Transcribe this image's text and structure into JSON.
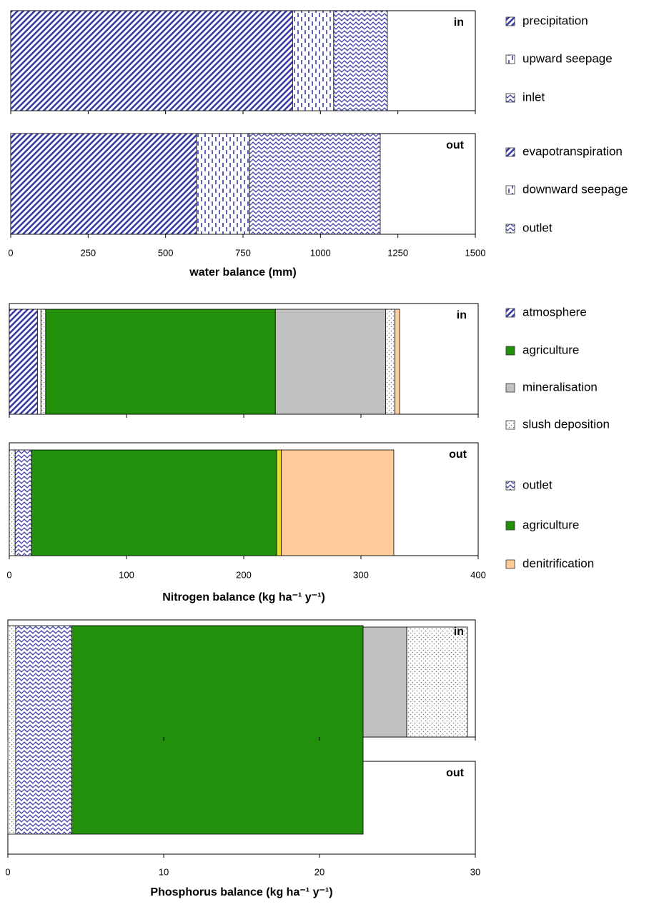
{
  "chart_data": [
    {
      "type": "bar",
      "orientation": "horizontal",
      "stacked": true,
      "x_label": "water balance (mm)",
      "categories": [
        "in",
        "out"
      ],
      "xlim": [
        0,
        1500
      ],
      "xticks": [
        0,
        250,
        500,
        750,
        1000,
        1250,
        1500
      ],
      "series": [
        {
          "name": "precipitation",
          "color": "#3c3ca8",
          "pattern": "diagonal",
          "values": [
            910,
            null
          ]
        },
        {
          "name": "upward seepage",
          "color": "#3c3ca8",
          "pattern": "dashes",
          "values": [
            133,
            null
          ]
        },
        {
          "name": "inlet",
          "color": "#3c3ca8",
          "pattern": "wave",
          "values": [
            173,
            null
          ]
        },
        {
          "name": "evapotranspiration",
          "color": "#3c3ca8",
          "pattern": "diagonal",
          "values": [
            null,
            600
          ]
        },
        {
          "name": "downward seepage",
          "color": "#3c3ca8",
          "pattern": "dashes",
          "values": [
            null,
            171
          ]
        },
        {
          "name": "outlet",
          "color": "#3c3ca8",
          "pattern": "wave",
          "values": [
            null,
            422
          ]
        }
      ]
    },
    {
      "type": "bar",
      "orientation": "horizontal",
      "stacked": true,
      "x_label": "Nitrogen balance  (kg ha⁻¹ y⁻¹)",
      "categories": [
        "in",
        "out"
      ],
      "xlim": [
        0,
        400
      ],
      "xticks": [
        0,
        100,
        200,
        300,
        400
      ],
      "series": [
        {
          "name": "atmosphere",
          "color": "#3c3ca8",
          "pattern": "diagonal",
          "values": [
            24,
            null
          ]
        },
        {
          "color": "#ffffff",
          "pattern": "solid",
          "values": [
            3,
            null
          ]
        },
        {
          "color": "#777777",
          "pattern": "dots",
          "values": [
            4,
            null
          ]
        },
        {
          "name": "agriculture",
          "color": "#23900b",
          "pattern": "solid",
          "values": [
            196,
            null
          ]
        },
        {
          "name": "mineralisation",
          "color": "#c0c0c0",
          "pattern": "solid",
          "values": [
            94,
            null
          ]
        },
        {
          "name": "slush deposition",
          "color": "#777777",
          "pattern": "dots",
          "values": [
            8,
            null
          ]
        },
        {
          "color": "#ffcc99",
          "pattern": "solid",
          "values": [
            4,
            null
          ]
        },
        {
          "color": "#777777",
          "pattern": "dots",
          "values": [
            null,
            5
          ]
        },
        {
          "name": "outlet",
          "color": "#3c3ca8",
          "pattern": "wave",
          "values": [
            null,
            14
          ]
        },
        {
          "name": "agriculture",
          "color": "#23900b",
          "pattern": "solid",
          "values": [
            null,
            209
          ]
        },
        {
          "color": "#e6dc2c",
          "pattern": "solid",
          "values": [
            null,
            4
          ]
        },
        {
          "name": "denitrification",
          "color": "#ffcc99",
          "pattern": "solid",
          "values": [
            null,
            96
          ]
        }
      ]
    },
    {
      "type": "bar",
      "orientation": "horizontal",
      "stacked": true,
      "x_label": "Phosphorus balance  (kg ha⁻¹ y⁻¹)",
      "categories": [
        "in",
        "out"
      ],
      "xlim": [
        0,
        30
      ],
      "xticks": [
        0,
        10,
        20,
        30
      ],
      "series": [
        {
          "color": "#3c3ca8",
          "pattern": "diagonal",
          "values": [
            0.6,
            null
          ]
        },
        {
          "color": "#ffffff",
          "pattern": "solid",
          "values": [
            0.5,
            null
          ]
        },
        {
          "color": "#777777",
          "pattern": "dots",
          "values": [
            0.5,
            null
          ]
        },
        {
          "color": "#23900b",
          "pattern": "solid",
          "values": [
            18.7,
            null
          ]
        },
        {
          "color": "#c0c0c0",
          "pattern": "solid",
          "values": [
            5.3,
            null
          ]
        },
        {
          "color": "#777777",
          "pattern": "dots",
          "values": [
            3.9,
            null
          ]
        },
        {
          "color": "#777777",
          "pattern": "dots",
          "values": [
            null,
            0.5
          ]
        },
        {
          "color": "#3c3ca8",
          "pattern": "wave",
          "values": [
            null,
            3.6
          ]
        },
        {
          "color": "#23900b",
          "pattern": "solid",
          "values": [
            null,
            18.7
          ]
        }
      ]
    }
  ]
}
